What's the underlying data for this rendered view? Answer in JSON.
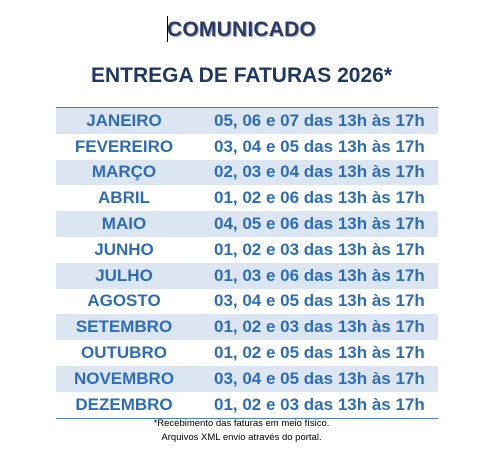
{
  "title": "COMUNICADO",
  "subtitle": "ENTREGA DE FATURAS 2026*",
  "schedule": [
    {
      "month": "JANEIRO",
      "dates": "05, 06 e 07 das 13h às 17h"
    },
    {
      "month": "FEVEREIRO",
      "dates": "03, 04 e 05 das 13h às 17h"
    },
    {
      "month": "MARÇO",
      "dates": "02, 03 e 04 das 13h às 17h"
    },
    {
      "month": "ABRIL",
      "dates": "01, 02 e 06 das 13h às 17h"
    },
    {
      "month": "MAIO",
      "dates": "04, 05 e 06 das 13h às 17h"
    },
    {
      "month": "JUNHO",
      "dates": "01, 02 e 03 das 13h às 17h"
    },
    {
      "month": "JULHO",
      "dates": "01, 03 e 06 das 13h às 17h"
    },
    {
      "month": "AGOSTO",
      "dates": "03, 04 e 05 das 13h às 17h"
    },
    {
      "month": "SETEMBRO",
      "dates": "01, 02 e 03 das 13h às 17h"
    },
    {
      "month": "OUTUBRO",
      "dates": "01, 02 e 05 das 13h às 17h"
    },
    {
      "month": "NOVEMBRO",
      "dates": "03, 04 e 05 das 13h às 17h"
    },
    {
      "month": "DEZEMBRO",
      "dates": "01, 02 e 03 das 13h às 17h"
    }
  ],
  "footnote": {
    "line1": "*Recebimento das faturas em meio físico.",
    "line2": "Arquivos XML envio através do portal."
  },
  "colors": {
    "title": "#2b3a67",
    "row_text": "#2e6db5",
    "row_shade": "#dce6f2",
    "rule": "#4f81bd"
  }
}
